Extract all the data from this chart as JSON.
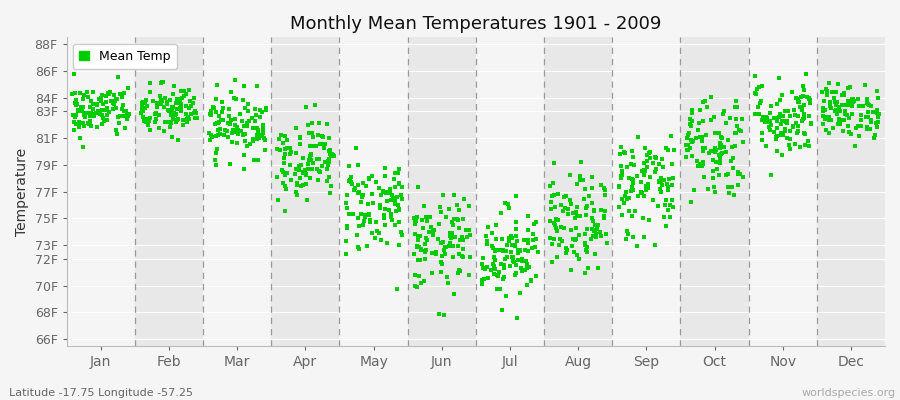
{
  "title": "Monthly Mean Temperatures 1901 - 2009",
  "ylabel": "Temperature",
  "xlabel_labels": [
    "Jan",
    "Feb",
    "Mar",
    "Apr",
    "May",
    "Jun",
    "Jul",
    "Aug",
    "Sep",
    "Oct",
    "Nov",
    "Dec"
  ],
  "ytick_labels": [
    "66F",
    "68F",
    "70F",
    "72F",
    "73F",
    "75F",
    "77F",
    "79F",
    "81F",
    "83F",
    "84F",
    "86F",
    "88F"
  ],
  "ytick_values": [
    66,
    68,
    70,
    72,
    73,
    75,
    77,
    79,
    81,
    83,
    84,
    86,
    88
  ],
  "ylim": [
    65.5,
    88.5
  ],
  "marker_color": "#00CC00",
  "marker": "s",
  "marker_size": 2.5,
  "legend_label": "Mean Temp",
  "subtitle": "Latitude -17.75 Longitude -57.25",
  "watermark": "worldspecies.org",
  "n_years": 109,
  "monthly_means": [
    83.0,
    83.0,
    82.0,
    79.5,
    76.0,
    73.0,
    72.5,
    74.5,
    77.5,
    80.5,
    82.5,
    83.0
  ],
  "monthly_stds": [
    1.0,
    1.0,
    1.2,
    1.5,
    1.8,
    1.8,
    1.7,
    1.8,
    2.0,
    2.0,
    1.5,
    1.0
  ],
  "bg_color": "#f5f5f5",
  "plot_bg_light": "#f5f5f5",
  "plot_bg_dark": "#e8e8e8",
  "seed": 42
}
